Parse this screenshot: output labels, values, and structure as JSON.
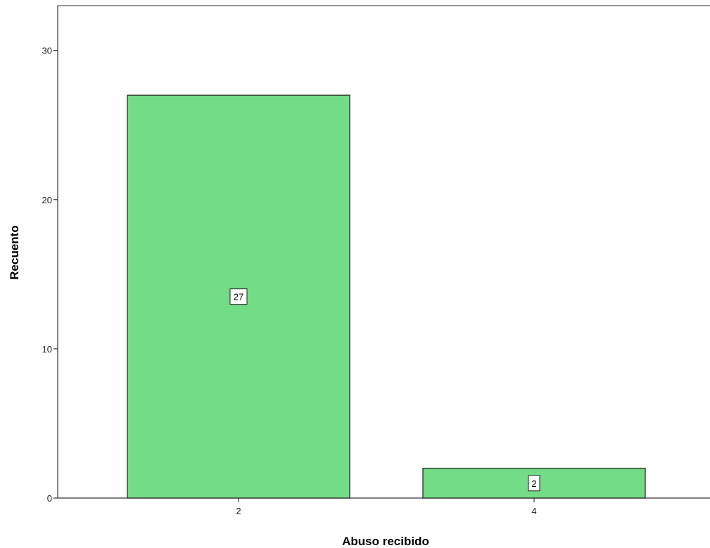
{
  "chart_data": {
    "type": "bar",
    "categories": [
      "2",
      "4"
    ],
    "values": [
      27,
      2
    ],
    "data_labels": [
      "27",
      "2"
    ],
    "xlabel": "Abuso recibido",
    "ylabel": "Recuento",
    "ylim": [
      0,
      33
    ],
    "yticks": [
      0,
      10,
      20,
      30
    ],
    "ytick_labels": [
      "0",
      "10",
      "20",
      "30"
    ],
    "grid": false,
    "legend": "none",
    "bar_color": "#72dc86"
  }
}
